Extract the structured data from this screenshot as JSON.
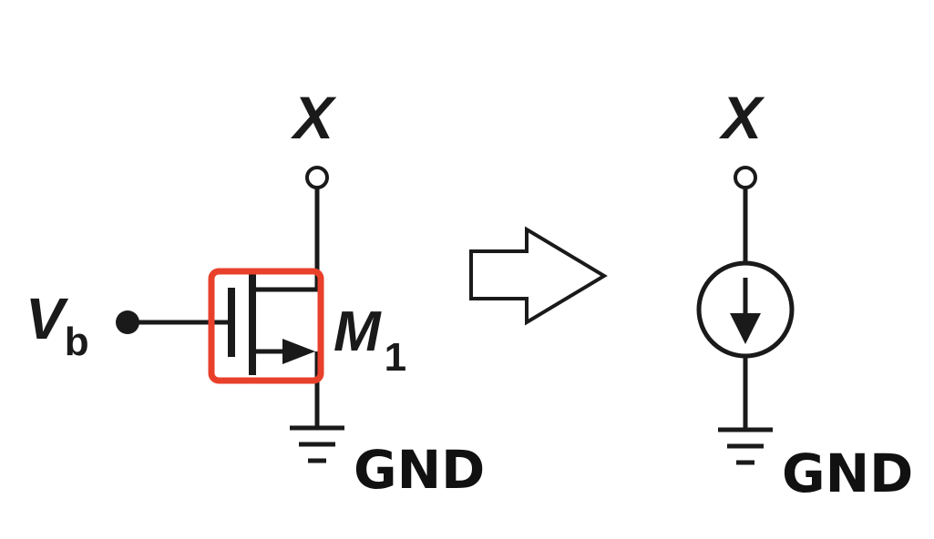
{
  "left_circuit": {
    "node_label": "X",
    "bias_label": "V",
    "bias_subscript": "b",
    "transistor_label": "M",
    "transistor_subscript": "1",
    "ground_label": "GND"
  },
  "right_circuit": {
    "node_label": "X",
    "ground_label": "GND"
  },
  "colors": {
    "ink": "#1a1a1a",
    "highlight": "#e8402a",
    "background": "#ffffff"
  }
}
